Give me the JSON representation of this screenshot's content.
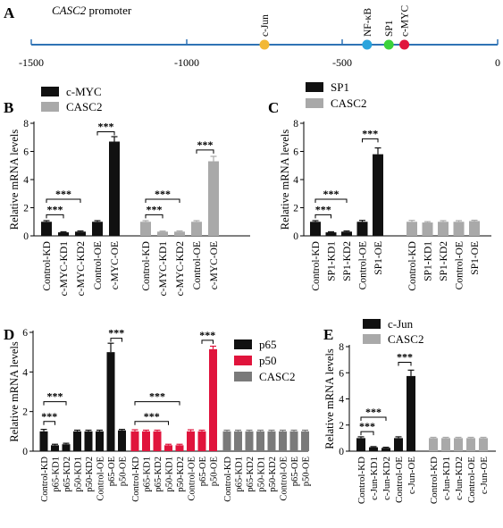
{
  "colors": {
    "black": "#111111",
    "gray": "#a9a9a9",
    "red": "#e0143c",
    "darkgray": "#7a7a7a",
    "axis_blue": "#2f73b5",
    "cjun": "#f2b835",
    "nfkb": "#2aa4dd",
    "sp1": "#3bd23b",
    "cmyc": "#e0143c"
  },
  "panels": {
    "A": {
      "label": "A",
      "title": "CASC2",
      "title_suffix": " promoter",
      "ticks": [
        "-1500",
        "-1000",
        "-500",
        "0"
      ],
      "sites": [
        "c-Jun",
        "NF-κB",
        "SP1",
        "c-MYC"
      ]
    },
    "B": {
      "label": "B"
    },
    "C": {
      "label": "C"
    },
    "D": {
      "label": "D"
    },
    "E": {
      "label": "E"
    }
  },
  "chart_data": [
    {
      "id": "A",
      "type": "scatter",
      "title": "CASC2 promoter",
      "x_range": [
        -1500,
        0
      ],
      "x_ticks": [
        -1500,
        -1000,
        -500,
        0
      ],
      "points": [
        {
          "name": "c-Jun",
          "x": -750
        },
        {
          "name": "NF-κB",
          "x": -420
        },
        {
          "name": "SP1",
          "x": -350
        },
        {
          "name": "c-MYC",
          "x": -300
        }
      ]
    },
    {
      "id": "B",
      "type": "bar",
      "ylabel": "Relative mRNA levels",
      "ylim": [
        0,
        8
      ],
      "yticks": [
        0,
        2,
        4,
        6,
        8
      ],
      "legend": [
        "c-MYC",
        "CASC2"
      ],
      "series": [
        {
          "name": "c-MYC",
          "color_key": "black",
          "categories": [
            "Control-KD",
            "c-MYC-KD1",
            "c-MYC-KD2",
            "Control-OE",
            "c-MYC-OE"
          ],
          "values": [
            1.0,
            0.25,
            0.3,
            1.0,
            6.7
          ],
          "errors": [
            0.08,
            0.04,
            0.05,
            0.08,
            0.35
          ]
        },
        {
          "name": "CASC2",
          "color_key": "gray",
          "categories": [
            "Control-KD",
            "c-MYC-KD1",
            "c-MYC-KD2",
            "Control-OE",
            "c-MYC-OE"
          ],
          "values": [
            1.0,
            0.3,
            0.3,
            1.0,
            5.3
          ],
          "errors": [
            0.08,
            0.04,
            0.05,
            0.08,
            0.35
          ]
        }
      ],
      "significance": [
        "***",
        "***",
        "***",
        "***",
        "***",
        "***"
      ]
    },
    {
      "id": "C",
      "type": "bar",
      "ylabel": "Relative mRNA levels",
      "ylim": [
        0,
        8
      ],
      "yticks": [
        0,
        2,
        4,
        6,
        8
      ],
      "legend": [
        "SP1",
        "CASC2"
      ],
      "series": [
        {
          "name": "SP1",
          "color_key": "black",
          "categories": [
            "Control-KD",
            "SP1-KD1",
            "SP1-KD2",
            "Control-OE",
            "SP1-OE"
          ],
          "values": [
            1.0,
            0.25,
            0.3,
            1.0,
            5.8
          ],
          "errors": [
            0.08,
            0.04,
            0.05,
            0.1,
            0.45
          ]
        },
        {
          "name": "CASC2",
          "color_key": "gray",
          "categories": [
            "Control-KD",
            "SP1-KD1",
            "SP1-KD2",
            "Control-OE",
            "SP1-OE"
          ],
          "values": [
            1.0,
            0.95,
            1.0,
            1.0,
            1.05
          ],
          "errors": [
            0.1,
            0.06,
            0.08,
            0.08,
            0.06
          ]
        }
      ],
      "significance": [
        "***",
        "***",
        "***"
      ]
    },
    {
      "id": "D",
      "type": "bar",
      "ylabel": "Relative mRNA levels",
      "ylim": [
        0,
        6
      ],
      "yticks": [
        0,
        2,
        4,
        6
      ],
      "legend": [
        "p65",
        "p50",
        "CASC2"
      ],
      "series": [
        {
          "name": "p65",
          "color_key": "black",
          "categories": [
            "Control-KD",
            "p65-KD1",
            "p65-KD2",
            "p50-KD1",
            "p50-KD2",
            "Control-OE",
            "p65-OE",
            "p50-OE"
          ],
          "values": [
            1.0,
            0.3,
            0.35,
            1.0,
            1.0,
            1.0,
            5.0,
            1.05
          ],
          "errors": [
            0.1,
            0.05,
            0.05,
            0.06,
            0.06,
            0.06,
            0.45,
            0.05
          ]
        },
        {
          "name": "p50",
          "color_key": "red",
          "categories": [
            "Control-KD",
            "p65-KD1",
            "p65-KD2",
            "p50-KD1",
            "p50-KD2",
            "Control-OE",
            "p65-OE",
            "p50-OE"
          ],
          "values": [
            1.0,
            1.0,
            1.0,
            0.3,
            0.3,
            1.0,
            1.0,
            5.15
          ],
          "errors": [
            0.08,
            0.06,
            0.06,
            0.05,
            0.05,
            0.08,
            0.06,
            0.15
          ]
        },
        {
          "name": "CASC2",
          "color_key": "darkgray",
          "categories": [
            "Control-KD",
            "p65-KD1",
            "p65-KD2",
            "p50-KD1",
            "p50-KD2",
            "Control-OE",
            "p65-OE",
            "p50-OE"
          ],
          "values": [
            1.0,
            1.0,
            1.0,
            1.0,
            1.0,
            1.0,
            1.0,
            1.0
          ],
          "errors": [
            0.06,
            0.06,
            0.06,
            0.06,
            0.06,
            0.06,
            0.06,
            0.06
          ]
        }
      ],
      "significance": [
        "***",
        "***",
        "***",
        "***",
        "***",
        "***"
      ]
    },
    {
      "id": "E",
      "type": "bar",
      "ylabel": "Relative mRNA levels",
      "ylim": [
        0,
        8
      ],
      "yticks": [
        0,
        2,
        4,
        6,
        8
      ],
      "legend": [
        "c-Jun",
        "CASC2"
      ],
      "series": [
        {
          "name": "c-Jun",
          "color_key": "black",
          "categories": [
            "Control-KD",
            "c-Jun-KD1",
            "c-Jun-KD2",
            "Control-OE",
            "c-Jun-OE"
          ],
          "values": [
            1.0,
            0.3,
            0.25,
            1.0,
            5.75
          ],
          "errors": [
            0.1,
            0.05,
            0.05,
            0.1,
            0.45
          ]
        },
        {
          "name": "CASC2",
          "color_key": "gray",
          "categories": [
            "Control-KD",
            "c-Jun-KD1",
            "c-Jun-KD2",
            "Control-OE",
            "c-Jun-OE"
          ],
          "values": [
            1.0,
            1.0,
            1.0,
            1.0,
            1.0
          ],
          "errors": [
            0.06,
            0.06,
            0.06,
            0.06,
            0.06
          ]
        }
      ],
      "significance": [
        "***",
        "***",
        "***"
      ]
    }
  ]
}
